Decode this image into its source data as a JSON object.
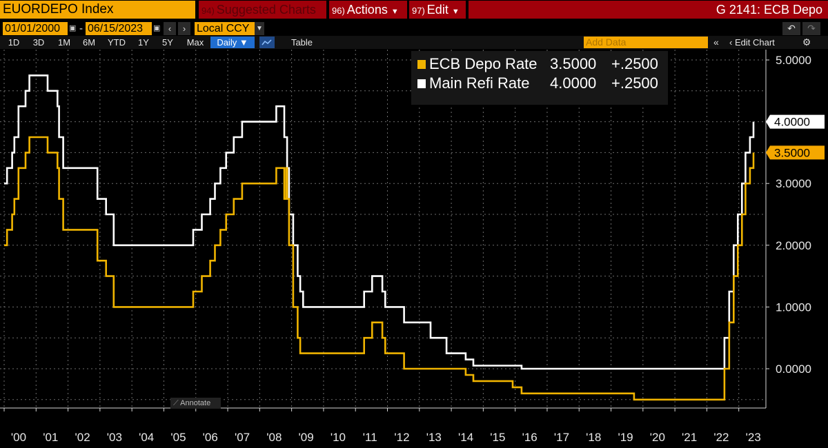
{
  "header": {
    "ticker": "EUORDEPO Index",
    "suggested": {
      "num": "94)",
      "label": "Suggested Charts"
    },
    "actions": {
      "num": "96)",
      "label": "Actions"
    },
    "edit": {
      "num": "97)",
      "label": "Edit"
    },
    "title": "G 2141: ECB Depo"
  },
  "controls": {
    "start_date": "01/01/2000",
    "end_date": "06/15/2023",
    "date_separator": "-",
    "currency": "Local CCY",
    "periods": [
      "1D",
      "3D",
      "1M",
      "6M",
      "YTD",
      "1Y",
      "5Y",
      "Max"
    ],
    "frequency": "Daily ▼",
    "table_label": "Table",
    "add_data_placeholder": "Add Data",
    "edit_chart_label": "Edit Chart",
    "annotate_label": "Annotate"
  },
  "colors": {
    "accent": "#f5a800",
    "header_red": "#a0000a",
    "depo": "#f0b400",
    "refi": "#ffffff",
    "blue": "#1f6dd0"
  },
  "icons": [
    "calendar-icon",
    "chevron-left-icon",
    "chevron-right-icon",
    "undo-icon",
    "redo-icon",
    "line-chart-icon",
    "double-chevron-left-icon",
    "gear-icon",
    "pencil-icon"
  ],
  "chart_data": {
    "type": "line",
    "title": "",
    "xlabel": "",
    "ylabel": "",
    "x_ticks": [
      "'00",
      "'01",
      "'02",
      "'03",
      "'04",
      "'05",
      "'06",
      "'07",
      "'08",
      "'09",
      "'10",
      "'11",
      "'12",
      "'13",
      "'14",
      "'15",
      "'16",
      "'17",
      "'18",
      "'19",
      "'20",
      "'21",
      "'22",
      "'23"
    ],
    "y_ticks": [
      "5.0000",
      "4.0000",
      "3.0000",
      "2.0000",
      "1.0000",
      "0.0000"
    ],
    "ylim": [
      -0.6,
      5.0
    ],
    "xlim": [
      2000.0,
      2023.46
    ],
    "grid": true,
    "legend_position": "top-right",
    "legend": [
      {
        "name": "ECB Depo Rate",
        "last": "3.5000",
        "change": "+.2500"
      },
      {
        "name": "Main Refi Rate",
        "last": "4.0000",
        "change": "+.2500"
      }
    ],
    "last_labels": [
      "4.0000",
      "3.5000"
    ],
    "series": [
      {
        "name": "ECB Depo Rate",
        "color": "#f0b400",
        "step": true,
        "points": [
          [
            2000.0,
            2.0
          ],
          [
            2000.09,
            2.25
          ],
          [
            2000.25,
            2.5
          ],
          [
            2000.32,
            2.75
          ],
          [
            2000.45,
            3.25
          ],
          [
            2000.67,
            3.5
          ],
          [
            2000.79,
            3.75
          ],
          [
            2001.36,
            3.5
          ],
          [
            2001.67,
            3.25
          ],
          [
            2001.72,
            2.75
          ],
          [
            2001.85,
            2.25
          ],
          [
            2002.92,
            1.75
          ],
          [
            2003.19,
            1.5
          ],
          [
            2003.43,
            1.0
          ],
          [
            2005.92,
            1.25
          ],
          [
            2006.19,
            1.5
          ],
          [
            2006.45,
            1.75
          ],
          [
            2006.6,
            2.0
          ],
          [
            2006.77,
            2.25
          ],
          [
            2006.95,
            2.5
          ],
          [
            2007.19,
            2.75
          ],
          [
            2007.45,
            3.0
          ],
          [
            2008.52,
            3.25
          ],
          [
            2008.77,
            2.75
          ],
          [
            2008.83,
            3.25
          ],
          [
            2008.86,
            2.75
          ],
          [
            2008.92,
            2.0
          ],
          [
            2009.05,
            1.0
          ],
          [
            2009.19,
            0.5
          ],
          [
            2009.27,
            0.25
          ],
          [
            2011.27,
            0.5
          ],
          [
            2011.52,
            0.75
          ],
          [
            2011.84,
            0.5
          ],
          [
            2011.93,
            0.25
          ],
          [
            2012.52,
            0.0
          ],
          [
            2014.45,
            -0.1
          ],
          [
            2014.69,
            -0.2
          ],
          [
            2015.92,
            -0.3
          ],
          [
            2016.2,
            -0.4
          ],
          [
            2019.72,
            -0.5
          ],
          [
            2022.55,
            0.0
          ],
          [
            2022.7,
            0.75
          ],
          [
            2022.84,
            1.5
          ],
          [
            2022.97,
            2.0
          ],
          [
            2023.1,
            2.5
          ],
          [
            2023.21,
            3.0
          ],
          [
            2023.35,
            3.25
          ],
          [
            2023.46,
            3.5
          ]
        ]
      },
      {
        "name": "Main Refi Rate",
        "color": "#ffffff",
        "step": true,
        "points": [
          [
            2000.0,
            3.0
          ],
          [
            2000.09,
            3.25
          ],
          [
            2000.25,
            3.5
          ],
          [
            2000.32,
            3.75
          ],
          [
            2000.45,
            4.25
          ],
          [
            2000.67,
            4.5
          ],
          [
            2000.79,
            4.75
          ],
          [
            2001.36,
            4.5
          ],
          [
            2001.67,
            4.25
          ],
          [
            2001.72,
            3.75
          ],
          [
            2001.85,
            3.25
          ],
          [
            2002.92,
            2.75
          ],
          [
            2003.19,
            2.5
          ],
          [
            2003.43,
            2.0
          ],
          [
            2005.92,
            2.25
          ],
          [
            2006.19,
            2.5
          ],
          [
            2006.45,
            2.75
          ],
          [
            2006.6,
            3.0
          ],
          [
            2006.77,
            3.25
          ],
          [
            2006.95,
            3.5
          ],
          [
            2007.19,
            3.75
          ],
          [
            2007.45,
            4.0
          ],
          [
            2008.52,
            4.25
          ],
          [
            2008.77,
            3.75
          ],
          [
            2008.86,
            3.25
          ],
          [
            2008.92,
            2.5
          ],
          [
            2009.05,
            2.0
          ],
          [
            2009.19,
            1.5
          ],
          [
            2009.27,
            1.25
          ],
          [
            2009.36,
            1.0
          ],
          [
            2011.27,
            1.25
          ],
          [
            2011.52,
            1.5
          ],
          [
            2011.84,
            1.25
          ],
          [
            2011.93,
            1.0
          ],
          [
            2012.52,
            0.75
          ],
          [
            2013.35,
            0.5
          ],
          [
            2013.85,
            0.25
          ],
          [
            2014.45,
            0.15
          ],
          [
            2014.69,
            0.05
          ],
          [
            2016.2,
            0.0
          ],
          [
            2022.55,
            0.5
          ],
          [
            2022.7,
            1.25
          ],
          [
            2022.84,
            2.0
          ],
          [
            2022.97,
            2.5
          ],
          [
            2023.1,
            3.0
          ],
          [
            2023.21,
            3.5
          ],
          [
            2023.35,
            3.75
          ],
          [
            2023.46,
            4.0
          ]
        ]
      }
    ]
  }
}
